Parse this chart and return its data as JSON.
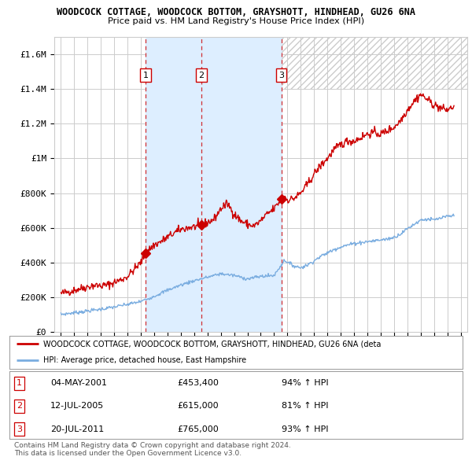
{
  "title1": "WOODCOCK COTTAGE, WOODCOCK BOTTOM, GRAYSHOTT, HINDHEAD, GU26 6NA",
  "title2": "Price paid vs. HM Land Registry's House Price Index (HPI)",
  "red_label": "WOODCOCK COTTAGE, WOODCOCK BOTTOM, GRAYSHOTT, HINDHEAD, GU26 6NA (deta",
  "blue_label": "HPI: Average price, detached house, East Hampshire",
  "sales": [
    {
      "num": 1,
      "date": "04-MAY-2001",
      "price": 453400,
      "pct": "94%",
      "dir": "↑",
      "x_year": 2001.35
    },
    {
      "num": 2,
      "date": "12-JUL-2005",
      "price": 615000,
      "pct": "81%",
      "dir": "↑",
      "x_year": 2005.54
    },
    {
      "num": 3,
      "date": "20-JUL-2011",
      "price": 765000,
      "pct": "93%",
      "dir": "↑",
      "x_year": 2011.54
    }
  ],
  "footer": "Contains HM Land Registry data © Crown copyright and database right 2024.\nThis data is licensed under the Open Government Licence v3.0.",
  "red_color": "#cc0000",
  "blue_color": "#7aade0",
  "shade_color": "#ddeeff",
  "grid_color": "#cccccc",
  "bg_color": "#ffffff",
  "ylim": [
    0,
    1700000
  ],
  "xlim_start": 1994.5,
  "xlim_end": 2025.5,
  "red_anchors": [
    [
      1995.0,
      220000
    ],
    [
      1995.5,
      230000
    ],
    [
      1996.0,
      240000
    ],
    [
      1996.5,
      250000
    ],
    [
      1997.0,
      260000
    ],
    [
      1997.5,
      268000
    ],
    [
      1998.0,
      265000
    ],
    [
      1998.5,
      270000
    ],
    [
      1999.0,
      285000
    ],
    [
      1999.5,
      300000
    ],
    [
      2000.0,
      320000
    ],
    [
      2000.5,
      360000
    ],
    [
      2001.0,
      400000
    ],
    [
      2001.35,
      453400
    ],
    [
      2001.7,
      480000
    ],
    [
      2002.0,
      500000
    ],
    [
      2002.5,
      520000
    ],
    [
      2003.0,
      545000
    ],
    [
      2003.5,
      570000
    ],
    [
      2004.0,
      590000
    ],
    [
      2004.5,
      600000
    ],
    [
      2005.0,
      605000
    ],
    [
      2005.54,
      615000
    ],
    [
      2006.0,
      630000
    ],
    [
      2006.5,
      650000
    ],
    [
      2007.0,
      710000
    ],
    [
      2007.5,
      740000
    ],
    [
      2008.0,
      680000
    ],
    [
      2008.5,
      640000
    ],
    [
      2009.0,
      620000
    ],
    [
      2009.5,
      610000
    ],
    [
      2010.0,
      640000
    ],
    [
      2010.5,
      680000
    ],
    [
      2011.0,
      710000
    ],
    [
      2011.54,
      765000
    ],
    [
      2011.8,
      780000
    ],
    [
      2012.0,
      760000
    ],
    [
      2012.5,
      770000
    ],
    [
      2013.0,
      800000
    ],
    [
      2013.5,
      850000
    ],
    [
      2014.0,
      910000
    ],
    [
      2014.5,
      960000
    ],
    [
      2015.0,
      1000000
    ],
    [
      2015.5,
      1050000
    ],
    [
      2016.0,
      1080000
    ],
    [
      2016.5,
      1100000
    ],
    [
      2017.0,
      1100000
    ],
    [
      2017.5,
      1120000
    ],
    [
      2018.0,
      1140000
    ],
    [
      2018.5,
      1150000
    ],
    [
      2019.0,
      1140000
    ],
    [
      2019.5,
      1160000
    ],
    [
      2020.0,
      1180000
    ],
    [
      2020.5,
      1220000
    ],
    [
      2021.0,
      1280000
    ],
    [
      2021.5,
      1330000
    ],
    [
      2022.0,
      1370000
    ],
    [
      2022.5,
      1340000
    ],
    [
      2023.0,
      1310000
    ],
    [
      2023.5,
      1290000
    ],
    [
      2024.0,
      1280000
    ],
    [
      2024.5,
      1300000
    ]
  ],
  "blue_anchors": [
    [
      1995.0,
      100000
    ],
    [
      1996.0,
      110000
    ],
    [
      1997.0,
      120000
    ],
    [
      1998.0,
      130000
    ],
    [
      1999.0,
      143000
    ],
    [
      2000.0,
      158000
    ],
    [
      2001.0,
      175000
    ],
    [
      2002.0,
      205000
    ],
    [
      2003.0,
      240000
    ],
    [
      2004.0,
      270000
    ],
    [
      2005.0,
      295000
    ],
    [
      2006.0,
      315000
    ],
    [
      2007.0,
      335000
    ],
    [
      2008.0,
      325000
    ],
    [
      2009.0,
      305000
    ],
    [
      2010.0,
      320000
    ],
    [
      2011.0,
      325000
    ],
    [
      2011.8,
      415000
    ],
    [
      2012.0,
      400000
    ],
    [
      2012.5,
      380000
    ],
    [
      2013.0,
      370000
    ],
    [
      2013.5,
      385000
    ],
    [
      2014.0,
      410000
    ],
    [
      2014.5,
      435000
    ],
    [
      2015.0,
      455000
    ],
    [
      2015.5,
      475000
    ],
    [
      2016.0,
      490000
    ],
    [
      2016.5,
      500000
    ],
    [
      2017.0,
      510000
    ],
    [
      2017.5,
      515000
    ],
    [
      2018.0,
      520000
    ],
    [
      2018.5,
      525000
    ],
    [
      2019.0,
      530000
    ],
    [
      2019.5,
      535000
    ],
    [
      2020.0,
      545000
    ],
    [
      2020.5,
      565000
    ],
    [
      2021.0,
      595000
    ],
    [
      2021.5,
      620000
    ],
    [
      2022.0,
      645000
    ],
    [
      2022.5,
      650000
    ],
    [
      2023.0,
      645000
    ],
    [
      2023.5,
      655000
    ],
    [
      2024.0,
      665000
    ],
    [
      2024.5,
      670000
    ]
  ]
}
